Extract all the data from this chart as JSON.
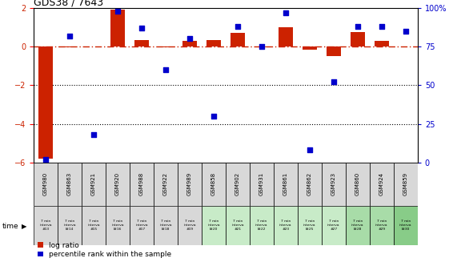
{
  "title": "GDS38 / 7643",
  "samples": [
    "GSM980",
    "GSM863",
    "GSM921",
    "GSM920",
    "GSM988",
    "GSM922",
    "GSM989",
    "GSM858",
    "GSM902",
    "GSM931",
    "GSM861",
    "GSM862",
    "GSM923",
    "GSM860",
    "GSM924",
    "GSM859"
  ],
  "time_labels_row1": "7 min",
  "time_labels_row2": "interva",
  "time_labels_row3": [
    "#13",
    "l#14",
    "#15",
    "l#16",
    "#17",
    "l#18",
    "#19",
    "l#20",
    "#21",
    "l#22",
    "#23",
    "l#25",
    "#27",
    "l#28",
    "#29",
    "l#30"
  ],
  "log_ratio": [
    -5.8,
    -0.05,
    0.0,
    1.9,
    0.35,
    -0.05,
    0.3,
    0.35,
    0.7,
    -0.05,
    1.0,
    -0.15,
    -0.5,
    0.75,
    0.3,
    0.0
  ],
  "percentile": [
    2,
    82,
    18,
    98,
    87,
    60,
    80,
    30,
    88,
    75,
    97,
    8,
    52,
    88,
    88,
    85
  ],
  "ylim_left": [
    -6,
    2
  ],
  "ylim_right": [
    0,
    100
  ],
  "yticks_left": [
    -6,
    -4,
    -2,
    0,
    2
  ],
  "yticks_right": [
    0,
    25,
    50,
    75,
    100
  ],
  "ytick_right_labels": [
    "0",
    "25",
    "50",
    "75",
    "100%"
  ],
  "hlines": [
    -2,
    -4
  ],
  "dashed_hline": 0,
  "bar_color": "#cc2200",
  "scatter_color": "#0000cc",
  "cell_bg_gray": "#d8d8d8",
  "cell_bg_colors": [
    "#d8d8d8",
    "#d8d8d8",
    "#d8d8d8",
    "#d8d8d8",
    "#d8d8d8",
    "#d8d8d8",
    "#d8d8d8",
    "#c8ebc8",
    "#c8ebc8",
    "#c8ebc8",
    "#c8ebc8",
    "#c8ebc8",
    "#c8ebc8",
    "#a8dca8",
    "#a8dca8",
    "#88cc88"
  ],
  "legend_bar_label": "log ratio",
  "legend_scatter_label": "percentile rank within the sample",
  "time_arrow_label": "time"
}
